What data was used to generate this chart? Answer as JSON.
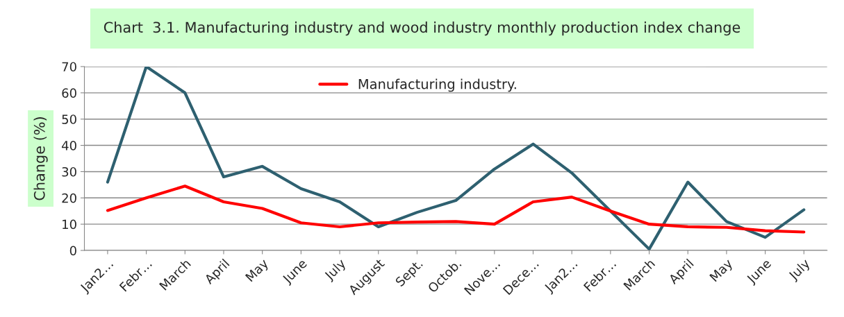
{
  "chart_data": {
    "type": "line",
    "title": "Chart  3.1. Manufacturing industry and wood industry monthly production index change",
    "ylabel": "Change (%)",
    "categories": [
      "Jan2…",
      "Febr…",
      "March",
      "April",
      "May",
      "June",
      "July",
      "August",
      "Sept.",
      "Octob.",
      "Nove…",
      "Dece…",
      "Jan2…",
      "Febr…",
      "March",
      "April",
      "May",
      "June",
      "July"
    ],
    "series": [
      {
        "name": "Manufacturing industry.",
        "color": "#ff0000",
        "values": [
          15.2,
          20,
          24.5,
          18.5,
          16,
          10.5,
          9,
          10.5,
          10.8,
          11,
          10,
          18.5,
          20.3,
          15,
          10,
          9,
          8.8,
          7.5,
          7
        ]
      },
      {
        "color": "#2e6070",
        "values": [
          26,
          70,
          60,
          28,
          32,
          23.5,
          18.5,
          9,
          14.5,
          19,
          31,
          40.5,
          29.5,
          15,
          0.5,
          26,
          11,
          5,
          15.5
        ]
      }
    ],
    "ylim": [
      0,
      70
    ],
    "yticks": [
      0,
      10,
      20,
      30,
      40,
      50,
      60,
      70
    ],
    "grid": "y",
    "legend": "top",
    "marker": "none",
    "line_style": "solid"
  }
}
